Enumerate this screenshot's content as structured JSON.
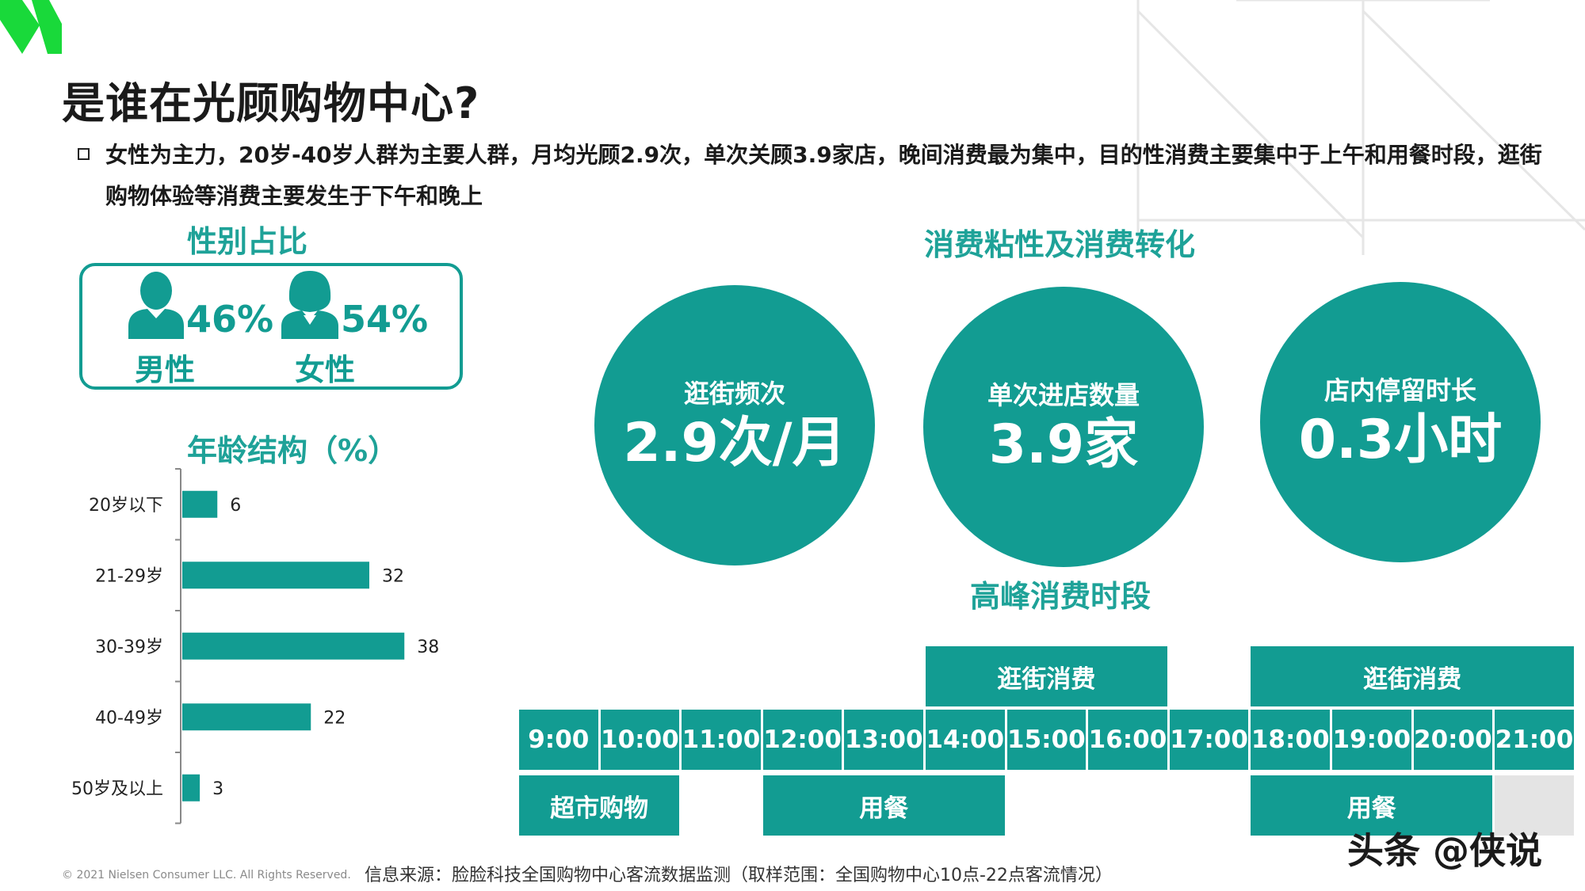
{
  "title": "是谁在光顾购物中心?",
  "summary": "女性为主力，20岁-40岁人群为主要人群，月均光顾2.9次，单次关顾3.9家店，晚间消费最为集中，目的性消费主要集中于上午和用餐时段，逛街购物体验等消费主要发生于下午和晚上",
  "gender": {
    "title": "性别占比",
    "male": {
      "label": "男性",
      "pct": "46%",
      "value": 46
    },
    "female": {
      "label": "女性",
      "pct": "54%",
      "value": 54
    }
  },
  "age": {
    "title": "年龄结构（%）"
  },
  "chart_data": {
    "type": "bar",
    "orientation": "horizontal",
    "title": "年龄结构（%）",
    "categories": [
      "20岁以下",
      "21-29岁",
      "30-39岁",
      "40-49岁",
      "50岁及以上"
    ],
    "values": [
      6,
      32,
      38,
      22,
      3
    ],
    "labels": [
      "6",
      "32",
      "38",
      "22",
      "3"
    ],
    "xlim": [
      0,
      40
    ],
    "color": "#129c92"
  },
  "stickiness": {
    "title": "消费粘性及消费转化",
    "circles": [
      {
        "label": "逛街频次",
        "value": "2.9次/月"
      },
      {
        "label": "单次进店数量",
        "value": "3.9家"
      },
      {
        "label": "店内停留时长",
        "value": "0.3小时"
      }
    ]
  },
  "peak": {
    "title": "高峰消费时段",
    "hours": [
      "9:00",
      "10:00",
      "11:00",
      "12:00",
      "13:00",
      "14:00",
      "15:00",
      "16:00",
      "17:00",
      "18:00",
      "19:00",
      "20:00",
      "21:00"
    ],
    "top": [
      {
        "label": "逛街消费",
        "start": 5,
        "end": 8
      },
      {
        "label": "逛街消费",
        "start": 9,
        "end": 13
      }
    ],
    "bottom": [
      {
        "label": "超市购物",
        "start": 0,
        "end": 2
      },
      {
        "label": "用餐",
        "start": 3,
        "end": 6
      },
      {
        "label": "用餐",
        "start": 9,
        "end": 12
      }
    ]
  },
  "footer": {
    "copyright": "© 2021 Nielsen Consumer LLC. All Rights Reserved.",
    "source": "信息来源：脸脸科技全国购物中心客流数据监测（取样范围：全国购物中心10点-22点客流情况）"
  },
  "watermark": "头条 @侠说",
  "colors": {
    "accent": "#129c92",
    "heading": "#1ea298",
    "logo": "#19d93a"
  }
}
